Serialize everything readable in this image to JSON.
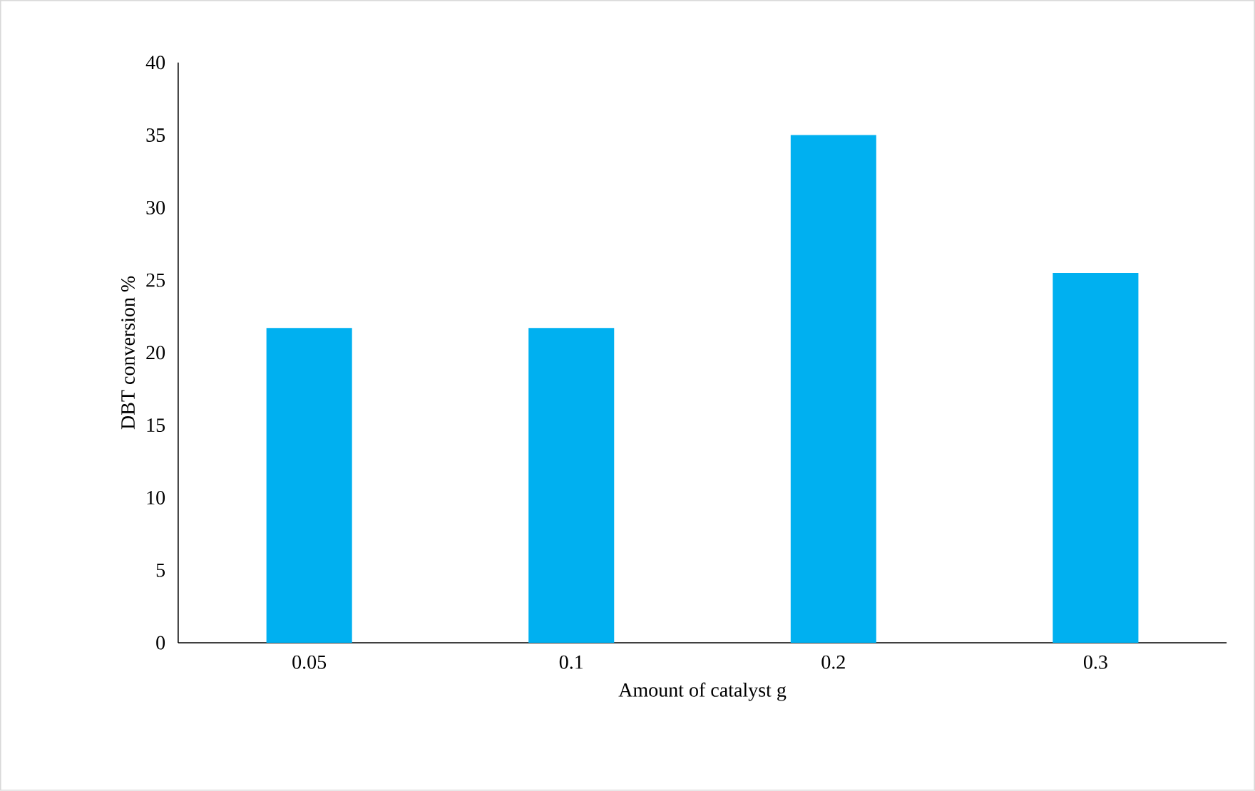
{
  "chart_data": {
    "type": "bar",
    "xlabel": "Amount of catalyst g",
    "ylabel": "DBT conversion %",
    "categories": [
      "0.05",
      "0.1",
      "0.2",
      "0.3"
    ],
    "values": [
      21.7,
      21.7,
      35,
      25.5
    ],
    "color": "#00b0f0",
    "ylim": [
      0,
      40
    ],
    "yticks": [
      0,
      5,
      10,
      15,
      20,
      25,
      30,
      35,
      40
    ]
  }
}
